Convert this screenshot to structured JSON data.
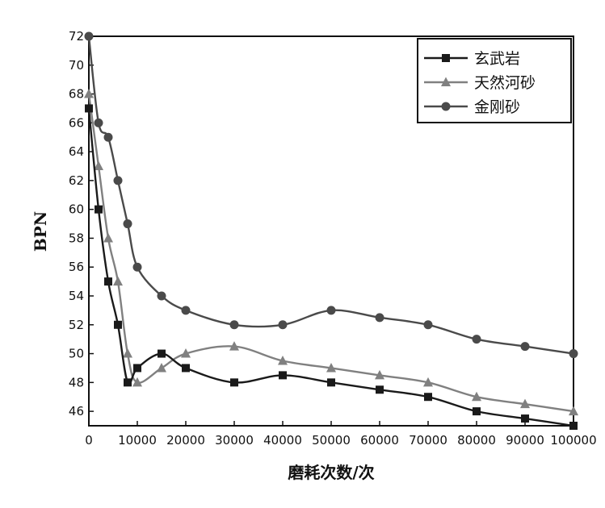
{
  "chart_data": {
    "type": "line",
    "title": "",
    "xlabel": "磨耗次数/次",
    "ylabel": "BPN",
    "xlim": [
      0,
      100000
    ],
    "ylim": [
      45,
      72
    ],
    "x_ticks": [
      0,
      10000,
      20000,
      30000,
      40000,
      50000,
      60000,
      70000,
      80000,
      90000,
      100000
    ],
    "y_ticks": [
      46,
      48,
      50,
      52,
      54,
      56,
      58,
      60,
      62,
      64,
      66,
      68,
      70,
      72
    ],
    "grid": false,
    "legend_position": "top-right",
    "series": [
      {
        "name": "玄武岩",
        "marker": "square",
        "color": "#1a1a1a",
        "points": [
          [
            0,
            67
          ],
          [
            2000,
            60
          ],
          [
            4000,
            55
          ],
          [
            6000,
            52
          ],
          [
            8000,
            48
          ],
          [
            10000,
            49
          ],
          [
            15000,
            50
          ],
          [
            20000,
            49
          ],
          [
            30000,
            48
          ],
          [
            40000,
            48.5
          ],
          [
            50000,
            48
          ],
          [
            60000,
            47.5
          ],
          [
            70000,
            47
          ],
          [
            80000,
            46
          ],
          [
            90000,
            45.5
          ],
          [
            100000,
            45
          ]
        ]
      },
      {
        "name": "天然河砂",
        "marker": "triangle",
        "color": "#808080",
        "points": [
          [
            0,
            68
          ],
          [
            2000,
            63
          ],
          [
            4000,
            58
          ],
          [
            6000,
            55
          ],
          [
            8000,
            50
          ],
          [
            10000,
            48
          ],
          [
            15000,
            49
          ],
          [
            20000,
            50
          ],
          [
            30000,
            50.5
          ],
          [
            40000,
            49.5
          ],
          [
            50000,
            49
          ],
          [
            60000,
            48.5
          ],
          [
            70000,
            48
          ],
          [
            80000,
            47
          ],
          [
            90000,
            46.5
          ],
          [
            100000,
            46
          ]
        ]
      },
      {
        "name": "金刚砂",
        "marker": "circle",
        "color": "#4a4a4a",
        "points": [
          [
            0,
            72
          ],
          [
            2000,
            66
          ],
          [
            4000,
            65
          ],
          [
            6000,
            62
          ],
          [
            8000,
            59
          ],
          [
            10000,
            56
          ],
          [
            15000,
            54
          ],
          [
            20000,
            53
          ],
          [
            30000,
            52
          ],
          [
            40000,
            52
          ],
          [
            50000,
            53
          ],
          [
            60000,
            52.5
          ],
          [
            70000,
            52
          ],
          [
            80000,
            51
          ],
          [
            90000,
            50.5
          ],
          [
            100000,
            50
          ]
        ]
      }
    ]
  }
}
